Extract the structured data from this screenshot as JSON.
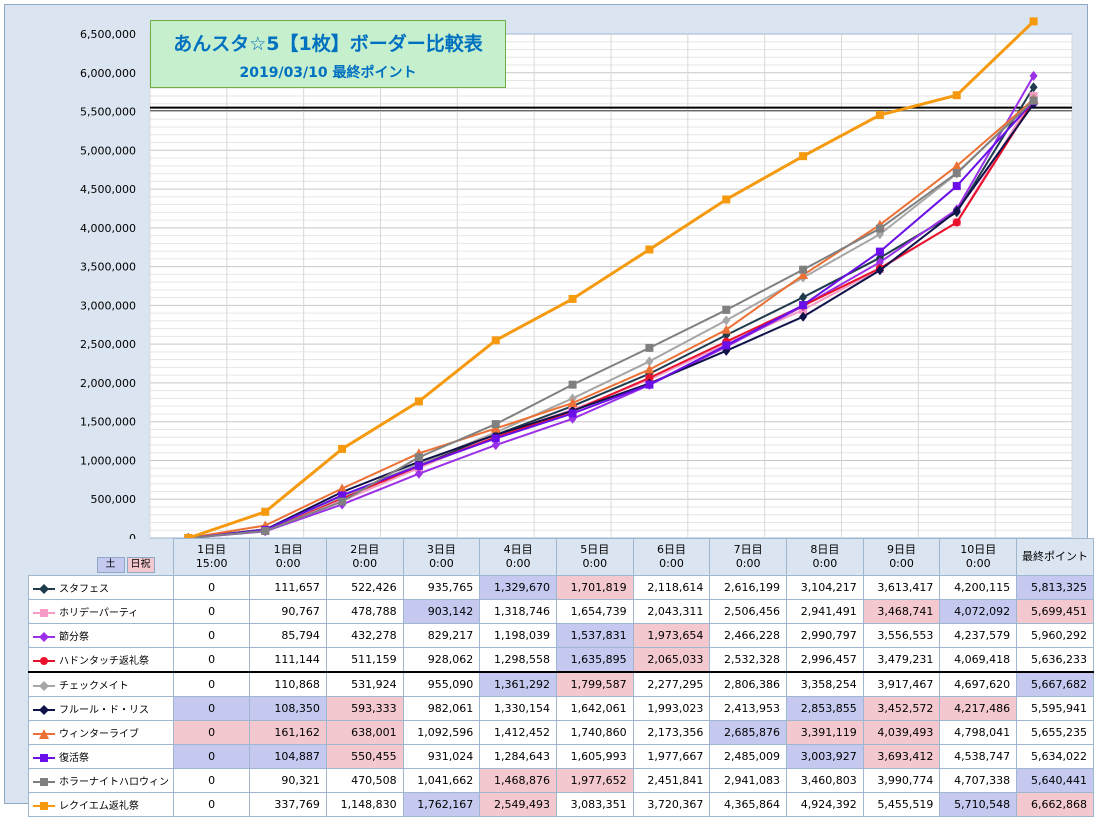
{
  "title": "あんスタ☆5【1枚】ボーダー比較表",
  "subtitle": "2019/03/10 最終ポイント",
  "badges": {
    "sat": "土",
    "hol": "日祝"
  },
  "columns": [
    {
      "top": "1日目",
      "bottom": "15:00"
    },
    {
      "top": "1日目",
      "bottom": "0:00"
    },
    {
      "top": "2日目",
      "bottom": "0:00"
    },
    {
      "top": "3日目",
      "bottom": "0:00"
    },
    {
      "top": "4日目",
      "bottom": "0:00"
    },
    {
      "top": "5日目",
      "bottom": "0:00"
    },
    {
      "top": "6日目",
      "bottom": "0:00"
    },
    {
      "top": "7日目",
      "bottom": "0:00"
    },
    {
      "top": "8日目",
      "bottom": "0:00"
    },
    {
      "top": "9日目",
      "bottom": "0:00"
    },
    {
      "top": "10日目",
      "bottom": "0:00"
    },
    {
      "top": "最終ポイント",
      "bottom": ""
    }
  ],
  "chart_data": {
    "type": "line",
    "title": "あんスタ☆5【1枚】ボーダー比較表",
    "subtitle": "2019/03/10 最終ポイント",
    "ylim": [
      0,
      6500000
    ],
    "ytick_step": 500000,
    "yticks": [
      "0",
      "500,000",
      "1,000,000",
      "1,500,000",
      "2,000,000",
      "2,500,000",
      "3,000,000",
      "3,500,000",
      "4,000,000",
      "4,500,000",
      "5,000,000",
      "5,500,000",
      "6,000,000",
      "6,500,000"
    ],
    "reference_line": 5550000,
    "grid": true,
    "legend": "table-bottom",
    "series": [
      {
        "name": "スタフェス",
        "color": "#1f3b4d",
        "marker": "diamond",
        "values": [
          0,
          111657,
          522426,
          935765,
          1329670,
          1701819,
          2118614,
          2616199,
          3104217,
          3613417,
          4200115,
          5813325
        ],
        "labels": [
          "0",
          "111,657",
          "522,426",
          "935,765",
          "1,329,670",
          "1,701,819",
          "2,118,614",
          "2,616,199",
          "3,104,217",
          "3,613,417",
          "4,200,115",
          "5,813,325"
        ],
        "hl": [
          "",
          "",
          "",
          "",
          "b",
          "p",
          "",
          "",
          "",
          "",
          "",
          "b"
        ]
      },
      {
        "name": "ホリデーパーティ",
        "color": "#f59bc5",
        "marker": "square",
        "values": [
          0,
          90767,
          478788,
          903142,
          1318746,
          1654739,
          2043311,
          2506456,
          2941491,
          3468741,
          4072092,
          5699451
        ],
        "labels": [
          "0",
          "90,767",
          "478,788",
          "903,142",
          "1,318,746",
          "1,654,739",
          "2,043,311",
          "2,506,456",
          "2,941,491",
          "3,468,741",
          "4,072,092",
          "5,699,451"
        ],
        "hl": [
          "",
          "",
          "",
          "b",
          "",
          "",
          "",
          "",
          "",
          "p",
          "b",
          "p"
        ]
      },
      {
        "name": "節分祭",
        "color": "#9b30e8",
        "marker": "diamond",
        "values": [
          0,
          85794,
          432278,
          829217,
          1198039,
          1537831,
          1973654,
          2466228,
          2990797,
          3556553,
          4237579,
          5960292
        ],
        "labels": [
          "0",
          "85,794",
          "432,278",
          "829,217",
          "1,198,039",
          "1,537,831",
          "1,973,654",
          "2,466,228",
          "2,990,797",
          "3,556,553",
          "4,237,579",
          "5,960,292"
        ],
        "hl": [
          "",
          "",
          "",
          "",
          "",
          "b",
          "p",
          "",
          "",
          "",
          "",
          ""
        ]
      },
      {
        "name": "ハドンタッチ返礼祭",
        "color": "#e8102a",
        "marker": "circle",
        "values": [
          0,
          111144,
          511159,
          928062,
          1298558,
          1635895,
          2065033,
          2532328,
          2996457,
          3479231,
          4069418,
          5636233
        ],
        "labels": [
          "0",
          "111,144",
          "511,159",
          "928,062",
          "1,298,558",
          "1,635,895",
          "2,065,033",
          "2,532,328",
          "2,996,457",
          "3,479,231",
          "4,069,418",
          "5,636,233"
        ],
        "hl": [
          "",
          "",
          "",
          "",
          "",
          "b",
          "p",
          "",
          "",
          "",
          "",
          ""
        ]
      },
      {
        "name": "チェックメイト",
        "color": "#a6a6a6",
        "marker": "diamond",
        "values": [
          0,
          110868,
          531924,
          955090,
          1361292,
          1799587,
          2277295,
          2806386,
          3358254,
          3917467,
          4697620,
          5667682
        ],
        "labels": [
          "0",
          "110,868",
          "531,924",
          "955,090",
          "1,361,292",
          "1,799,587",
          "2,277,295",
          "2,806,386",
          "3,358,254",
          "3,917,467",
          "4,697,620",
          "5,667,682"
        ],
        "hl": [
          "",
          "",
          "",
          "",
          "b",
          "p",
          "",
          "",
          "",
          "",
          "",
          "b"
        ]
      },
      {
        "name": "フルール・ド・リス",
        "color": "#10124a",
        "marker": "diamond",
        "values": [
          0,
          108350,
          593333,
          982061,
          1330154,
          1642061,
          1993023,
          2413953,
          2853855,
          3452572,
          4217486,
          5595941
        ],
        "labels": [
          "0",
          "108,350",
          "593,333",
          "982,061",
          "1,330,154",
          "1,642,061",
          "1,993,023",
          "2,413,953",
          "2,853,855",
          "3,452,572",
          "4,217,486",
          "5,595,941"
        ],
        "hl": [
          "b",
          "b",
          "p",
          "",
          "",
          "",
          "",
          "",
          "b",
          "p",
          "p",
          ""
        ]
      },
      {
        "name": "ウィンターライブ",
        "color": "#ed7035",
        "marker": "triangle",
        "values": [
          0,
          161162,
          638001,
          1092596,
          1412452,
          1740860,
          2173356,
          2685876,
          3391119,
          4039493,
          4798041,
          5655235
        ],
        "labels": [
          "0",
          "161,162",
          "638,001",
          "1,092,596",
          "1,412,452",
          "1,740,860",
          "2,173,356",
          "2,685,876",
          "3,391,119",
          "4,039,493",
          "4,798,041",
          "5,655,235"
        ],
        "hl": [
          "p",
          "p",
          "p",
          "",
          "",
          "",
          "",
          "b",
          "p",
          "p",
          "",
          ""
        ]
      },
      {
        "name": "復活祭",
        "color": "#6a0fe8",
        "marker": "square",
        "values": [
          0,
          104887,
          550455,
          931024,
          1284643,
          1605993,
          1977667,
          2485009,
          3003927,
          3693412,
          4538747,
          5634022
        ],
        "labels": [
          "0",
          "104,887",
          "550,455",
          "931,024",
          "1,284,643",
          "1,605,993",
          "1,977,667",
          "2,485,009",
          "3,003,927",
          "3,693,412",
          "4,538,747",
          "5,634,022"
        ],
        "hl": [
          "b",
          "b",
          "p",
          "",
          "",
          "",
          "",
          "",
          "b",
          "p",
          "",
          ""
        ]
      },
      {
        "name": "ホラーナイトハロウィン",
        "color": "#808080",
        "marker": "square",
        "values": [
          0,
          90321,
          470508,
          1041662,
          1468876,
          1977652,
          2451841,
          2941083,
          3460803,
          3990774,
          4707338,
          5640441
        ],
        "labels": [
          "0",
          "90,321",
          "470,508",
          "1,041,662",
          "1,468,876",
          "1,977,652",
          "2,451,841",
          "2,941,083",
          "3,460,803",
          "3,990,774",
          "4,707,338",
          "5,640,441"
        ],
        "hl": [
          "",
          "",
          "",
          "",
          "p",
          "p",
          "",
          "",
          "",
          "",
          "",
          "b"
        ]
      },
      {
        "name": "レクイエム返礼祭",
        "color": "#f59a0f",
        "marker": "square",
        "values": [
          0,
          337769,
          1148830,
          1762167,
          2549493,
          3083351,
          3720367,
          4365864,
          4924392,
          5455519,
          5710548,
          6662868
        ],
        "labels": [
          "0",
          "337,769",
          "1,148,830",
          "1,762,167",
          "2,549,493",
          "3,083,351",
          "3,720,367",
          "4,365,864",
          "4,924,392",
          "5,455,519",
          "5,710,548",
          "6,662,868"
        ],
        "hl": [
          "",
          "",
          "",
          "b",
          "p",
          "",
          "",
          "",
          "",
          "",
          "b",
          "p"
        ]
      }
    ]
  }
}
